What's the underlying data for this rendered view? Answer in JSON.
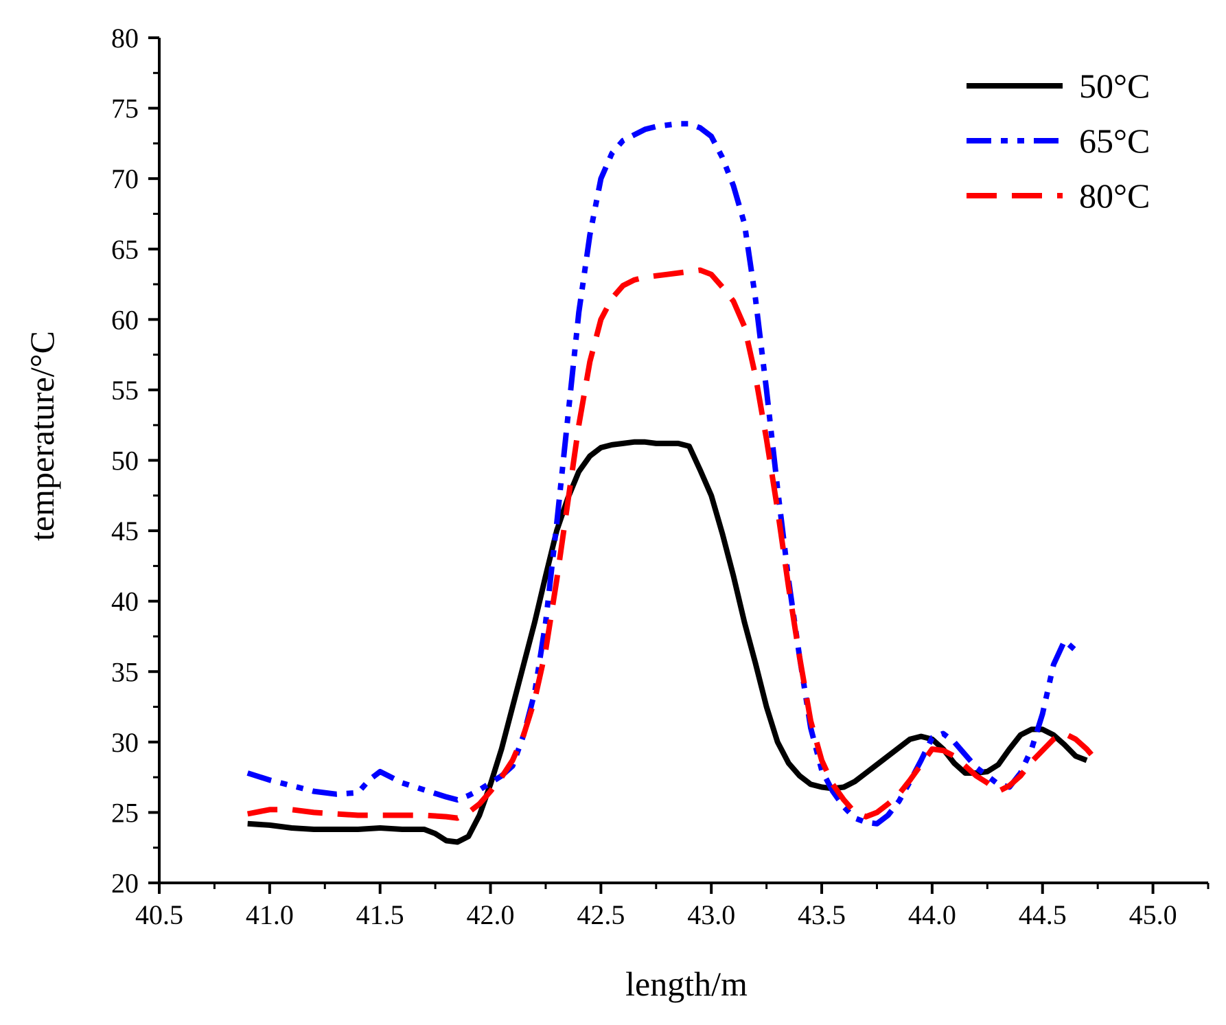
{
  "chart_data": {
    "type": "line",
    "title": "",
    "xlabel": "length/m",
    "ylabel": "temperature/°C",
    "xlim": [
      40.5,
      45.25
    ],
    "ylim": [
      20,
      80
    ],
    "xticks": [
      40.5,
      41.0,
      41.5,
      42.0,
      42.5,
      43.0,
      43.5,
      44.0,
      44.5,
      45.0
    ],
    "xtick_labels": [
      "40.5",
      "41.0",
      "41.5",
      "42.0",
      "42.5",
      "43.0",
      "43.5",
      "44.0",
      "44.5",
      "45.0"
    ],
    "yticks": [
      20,
      25,
      30,
      35,
      40,
      45,
      50,
      55,
      60,
      65,
      70,
      75,
      80
    ],
    "ytick_labels": [
      "20",
      "25",
      "30",
      "35",
      "40",
      "45",
      "50",
      "55",
      "60",
      "65",
      "70",
      "75",
      "80"
    ],
    "grid": false,
    "legend_position": "top-right",
    "series": [
      {
        "name": "50°C",
        "color": "#000000",
        "style": "solid",
        "x": [
          40.9,
          41.0,
          41.1,
          41.2,
          41.3,
          41.4,
          41.5,
          41.6,
          41.7,
          41.75,
          41.8,
          41.85,
          41.9,
          41.95,
          42.0,
          42.05,
          42.1,
          42.15,
          42.2,
          42.25,
          42.3,
          42.35,
          42.4,
          42.45,
          42.5,
          42.55,
          42.6,
          42.65,
          42.7,
          42.75,
          42.8,
          42.85,
          42.9,
          42.95,
          43.0,
          43.05,
          43.1,
          43.15,
          43.2,
          43.25,
          43.3,
          43.35,
          43.4,
          43.45,
          43.5,
          43.55,
          43.6,
          43.65,
          43.7,
          43.8,
          43.9,
          43.95,
          44.0,
          44.05,
          44.1,
          44.15,
          44.2,
          44.25,
          44.3,
          44.35,
          44.4,
          44.45,
          44.5,
          44.55,
          44.6,
          44.65,
          44.7
        ],
        "y": [
          24.2,
          24.1,
          23.9,
          23.8,
          23.8,
          23.8,
          23.9,
          23.8,
          23.8,
          23.5,
          23.0,
          22.9,
          23.3,
          24.8,
          27.0,
          29.5,
          32.5,
          35.5,
          38.5,
          41.8,
          45.0,
          47.3,
          49.2,
          50.3,
          50.9,
          51.1,
          51.2,
          51.3,
          51.3,
          51.2,
          51.2,
          51.2,
          51.0,
          49.3,
          47.5,
          44.8,
          41.8,
          38.5,
          35.6,
          32.5,
          30.0,
          28.5,
          27.6,
          27.0,
          26.8,
          26.7,
          26.8,
          27.2,
          27.8,
          29.0,
          30.2,
          30.4,
          30.2,
          29.5,
          28.5,
          27.8,
          27.8,
          27.9,
          28.4,
          29.5,
          30.5,
          30.9,
          30.9,
          30.5,
          29.8,
          29.0,
          28.7
        ],
        "x_note": ""
      },
      {
        "name": "65°C",
        "color": "#0000ff",
        "style": "dash-dot-dot",
        "x": [
          40.9,
          41.0,
          41.1,
          41.2,
          41.3,
          41.4,
          41.45,
          41.5,
          41.55,
          41.6,
          41.7,
          41.8,
          41.85,
          41.9,
          41.95,
          42.0,
          42.05,
          42.1,
          42.15,
          42.2,
          42.25,
          42.3,
          42.35,
          42.4,
          42.45,
          42.5,
          42.55,
          42.6,
          42.65,
          42.7,
          42.75,
          42.8,
          42.85,
          42.9,
          42.95,
          43.0,
          43.05,
          43.1,
          43.15,
          43.2,
          43.25,
          43.3,
          43.35,
          43.4,
          43.45,
          43.5,
          43.55,
          43.6,
          43.65,
          43.7,
          43.75,
          43.8,
          43.85,
          43.9,
          43.95,
          44.0,
          44.05,
          44.1,
          44.15,
          44.2,
          44.25,
          44.3,
          44.35,
          44.4,
          44.45,
          44.5,
          44.55,
          44.6,
          44.65
        ],
        "y": [
          27.8,
          27.3,
          26.9,
          26.5,
          26.3,
          26.4,
          27.3,
          27.9,
          27.5,
          27.1,
          26.6,
          26.1,
          25.9,
          26.2,
          26.6,
          27.1,
          27.6,
          28.3,
          30.5,
          33.5,
          38.5,
          45.5,
          53.0,
          60.5,
          66.0,
          70.0,
          71.8,
          72.7,
          73.1,
          73.5,
          73.7,
          73.8,
          73.9,
          73.9,
          73.6,
          73.0,
          71.5,
          69.5,
          66.8,
          61.5,
          55.0,
          48.0,
          41.5,
          36.0,
          31.0,
          28.0,
          26.5,
          25.4,
          24.6,
          24.3,
          24.2,
          24.8,
          25.8,
          27.2,
          28.7,
          30.3,
          30.6,
          30.0,
          29.1,
          28.2,
          27.6,
          27.0,
          26.8,
          27.8,
          29.5,
          32.0,
          35.5,
          37.2,
          36.5
        ]
      },
      {
        "name": "80°C",
        "color": "#ff0000",
        "style": "dashed",
        "x": [
          40.9,
          41.0,
          41.1,
          41.2,
          41.3,
          41.4,
          41.5,
          41.6,
          41.7,
          41.8,
          41.85,
          41.9,
          41.95,
          42.0,
          42.05,
          42.1,
          42.15,
          42.2,
          42.25,
          42.3,
          42.35,
          42.4,
          42.45,
          42.5,
          42.55,
          42.6,
          42.65,
          42.7,
          42.75,
          42.8,
          42.85,
          42.9,
          42.95,
          43.0,
          43.05,
          43.1,
          43.15,
          43.2,
          43.25,
          43.3,
          43.35,
          43.4,
          43.45,
          43.5,
          43.55,
          43.6,
          43.65,
          43.7,
          43.75,
          43.8,
          43.85,
          43.9,
          43.95,
          44.0,
          44.05,
          44.1,
          44.15,
          44.2,
          44.25,
          44.3,
          44.35,
          44.4,
          44.45,
          44.5,
          44.55,
          44.6,
          44.65,
          44.7,
          44.75
        ],
        "y": [
          24.9,
          25.2,
          25.2,
          25.0,
          24.9,
          24.8,
          24.8,
          24.8,
          24.8,
          24.7,
          24.6,
          25.0,
          25.6,
          26.5,
          27.5,
          28.7,
          30.5,
          33.0,
          36.5,
          41.5,
          47.0,
          52.5,
          57.0,
          60.0,
          61.5,
          62.4,
          62.8,
          63.0,
          63.1,
          63.2,
          63.3,
          63.4,
          63.5,
          63.2,
          62.3,
          61.3,
          59.5,
          56.0,
          51.5,
          46.5,
          41.0,
          36.0,
          31.5,
          28.7,
          27.0,
          25.9,
          25.0,
          24.7,
          25.0,
          25.6,
          26.3,
          27.3,
          28.4,
          29.5,
          29.4,
          29.0,
          28.3,
          27.6,
          27.1,
          26.5,
          26.9,
          27.6,
          28.6,
          29.4,
          30.2,
          30.6,
          30.2,
          29.5,
          28.6
        ]
      }
    ]
  }
}
